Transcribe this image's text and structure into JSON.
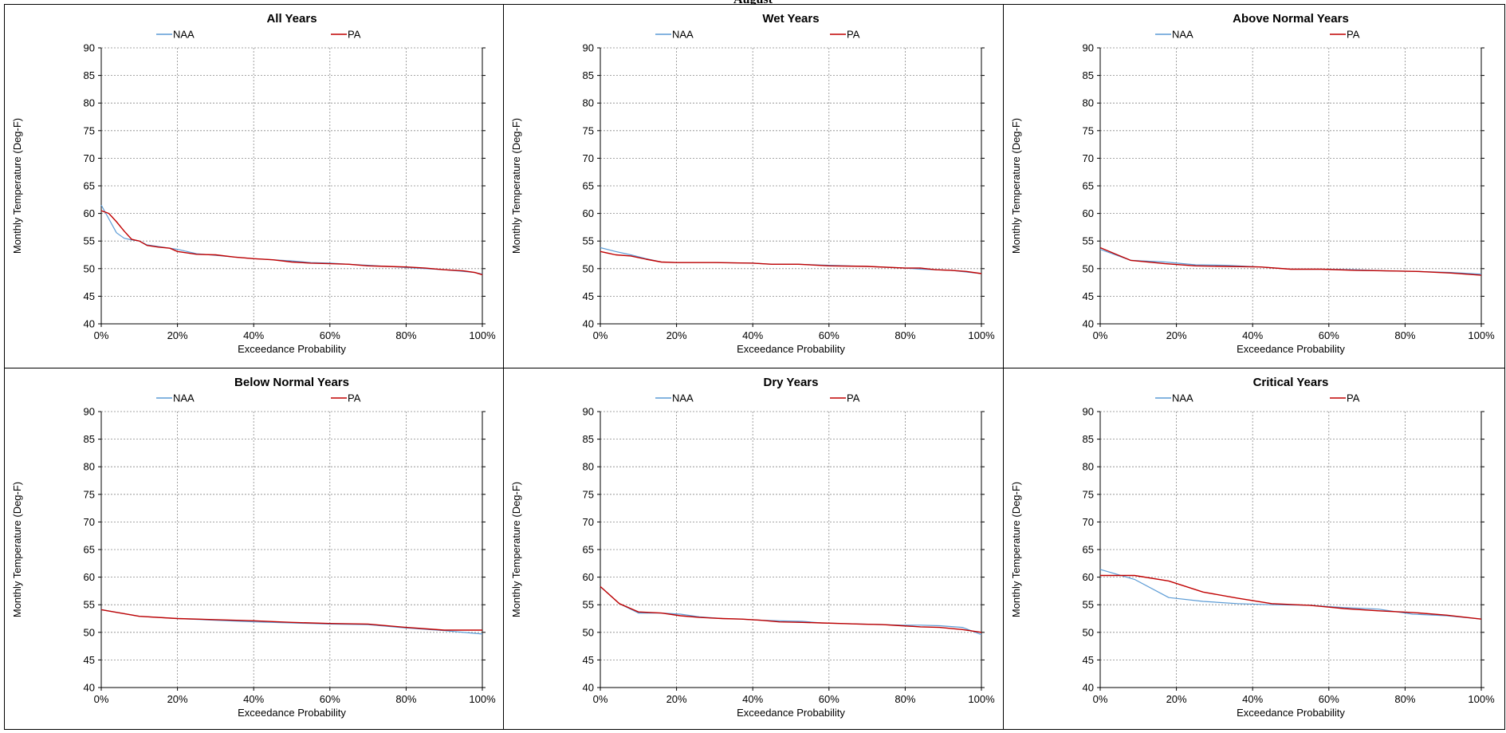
{
  "page_title": "August",
  "colors": {
    "NAA": "#5b9bd5",
    "PA": "#c00000"
  },
  "chart_data": [
    {
      "type": "line",
      "title": "All Years",
      "xlabel": "Exceedance Probability",
      "ylabel": "Monthly Temperature (Deg-F)",
      "xlim": [
        0,
        100
      ],
      "ylim": [
        40,
        90
      ],
      "xticks": [
        "0%",
        "20%",
        "40%",
        "60%",
        "80%",
        "100%"
      ],
      "yticks": [
        "40",
        "45",
        "50",
        "55",
        "60",
        "65",
        "70",
        "75",
        "80",
        "85",
        "90"
      ],
      "grid": true,
      "legend": "top",
      "series": [
        {
          "name": "NAA",
          "x": [
            0,
            2,
            4,
            6,
            8,
            10,
            12,
            15,
            18,
            20,
            25,
            30,
            35,
            40,
            45,
            50,
            55,
            60,
            65,
            70,
            75,
            80,
            85,
            90,
            95,
            98,
            100
          ],
          "y": [
            61.5,
            59.0,
            56.5,
            55.5,
            55.2,
            55.0,
            54.3,
            54.0,
            53.7,
            53.5,
            52.7,
            52.4,
            52.1,
            51.8,
            51.6,
            51.4,
            51.1,
            51.0,
            50.8,
            50.6,
            50.4,
            50.2,
            50.0,
            49.8,
            49.5,
            49.3,
            49.0
          ]
        },
        {
          "name": "PA",
          "x": [
            0,
            2,
            4,
            6,
            8,
            10,
            12,
            15,
            18,
            20,
            25,
            30,
            35,
            40,
            45,
            50,
            55,
            60,
            65,
            70,
            75,
            80,
            85,
            90,
            95,
            98,
            100
          ],
          "y": [
            60.5,
            60.0,
            58.5,
            56.8,
            55.3,
            55.0,
            54.2,
            53.9,
            53.7,
            53.1,
            52.6,
            52.5,
            52.1,
            51.8,
            51.6,
            51.2,
            51.0,
            50.9,
            50.8,
            50.5,
            50.4,
            50.3,
            50.1,
            49.8,
            49.6,
            49.3,
            48.9
          ]
        }
      ]
    },
    {
      "type": "line",
      "title": "Wet Years",
      "xlabel": "Exceedance Probability",
      "ylabel": "Monthly Temperature (Deg-F)",
      "xlim": [
        0,
        100
      ],
      "ylim": [
        40,
        90
      ],
      "xticks": [
        "0%",
        "20%",
        "40%",
        "60%",
        "80%",
        "100%"
      ],
      "yticks": [
        "40",
        "45",
        "50",
        "55",
        "60",
        "65",
        "70",
        "75",
        "80",
        "85",
        "90"
      ],
      "grid": true,
      "legend": "top",
      "series": [
        {
          "name": "NAA",
          "x": [
            0,
            4,
            8,
            12,
            16,
            20,
            30,
            40,
            45,
            52,
            60,
            70,
            80,
            84,
            88,
            92,
            96,
            100
          ],
          "y": [
            53.8,
            53.1,
            52.5,
            51.8,
            51.2,
            51.1,
            51.1,
            51.0,
            50.8,
            50.8,
            50.6,
            50.4,
            50.1,
            49.9,
            49.8,
            49.7,
            49.4,
            49.1
          ]
        },
        {
          "name": "PA",
          "x": [
            0,
            4,
            8,
            12,
            16,
            20,
            30,
            40,
            45,
            52,
            60,
            70,
            80,
            84,
            88,
            92,
            96,
            100
          ],
          "y": [
            53.1,
            52.5,
            52.3,
            51.7,
            51.2,
            51.1,
            51.1,
            51.0,
            50.8,
            50.8,
            50.5,
            50.4,
            50.1,
            50.1,
            49.8,
            49.7,
            49.5,
            49.1
          ]
        }
      ]
    },
    {
      "type": "line",
      "title": "Above Normal Years",
      "xlabel": "Exceedance Probability",
      "ylabel": "Monthly Temperature (Deg-F)",
      "xlim": [
        0,
        100
      ],
      "ylim": [
        40,
        90
      ],
      "xticks": [
        "0%",
        "20%",
        "40%",
        "60%",
        "80%",
        "100%"
      ],
      "yticks": [
        "40",
        "45",
        "50",
        "55",
        "60",
        "65",
        "70",
        "75",
        "80",
        "85",
        "90"
      ],
      "grid": true,
      "legend": "top",
      "series": [
        {
          "name": "NAA",
          "x": [
            0,
            8,
            17,
            25,
            33,
            42,
            50,
            58,
            67,
            75,
            83,
            92,
            100
          ],
          "y": [
            53.5,
            51.5,
            51.2,
            50.7,
            50.6,
            50.3,
            49.9,
            49.9,
            49.8,
            49.6,
            49.5,
            49.3,
            49.0
          ]
        },
        {
          "name": "PA",
          "x": [
            0,
            8,
            17,
            25,
            33,
            42,
            50,
            58,
            67,
            75,
            83,
            92,
            100
          ],
          "y": [
            53.8,
            51.5,
            50.9,
            50.5,
            50.4,
            50.3,
            49.9,
            49.9,
            49.7,
            49.6,
            49.5,
            49.2,
            48.8
          ]
        }
      ]
    },
    {
      "type": "line",
      "title": "Below Normal Years",
      "xlabel": "Exceedance Probability",
      "ylabel": "Monthly Temperature (Deg-F)",
      "xlim": [
        0,
        100
      ],
      "ylim": [
        40,
        90
      ],
      "xticks": [
        "0%",
        "20%",
        "40%",
        "60%",
        "80%",
        "100%"
      ],
      "yticks": [
        "40",
        "45",
        "50",
        "55",
        "60",
        "65",
        "70",
        "75",
        "80",
        "85",
        "90"
      ],
      "grid": true,
      "legend": "top",
      "series": [
        {
          "name": "NAA",
          "x": [
            0,
            10,
            20,
            30,
            40,
            50,
            60,
            70,
            80,
            90,
            100
          ],
          "y": [
            54.1,
            52.9,
            52.5,
            52.2,
            51.9,
            51.7,
            51.5,
            51.4,
            50.8,
            50.3,
            49.7
          ]
        },
        {
          "name": "PA",
          "x": [
            0,
            10,
            20,
            30,
            40,
            50,
            60,
            70,
            80,
            90,
            100
          ],
          "y": [
            54.1,
            52.9,
            52.5,
            52.3,
            52.1,
            51.8,
            51.6,
            51.5,
            50.9,
            50.4,
            50.4
          ]
        }
      ]
    },
    {
      "type": "line",
      "title": "Dry Years",
      "xlabel": "Exceedance Probability",
      "ylabel": "Monthly Temperature (Deg-F)",
      "xlim": [
        0,
        100
      ],
      "ylim": [
        40,
        90
      ],
      "xticks": [
        "0%",
        "20%",
        "40%",
        "60%",
        "80%",
        "100%"
      ],
      "yticks": [
        "40",
        "45",
        "50",
        "55",
        "60",
        "65",
        "70",
        "75",
        "80",
        "85",
        "90"
      ],
      "grid": true,
      "legend": "top",
      "series": [
        {
          "name": "NAA",
          "x": [
            0,
            5,
            10,
            16,
            21,
            26,
            32,
            37,
            42,
            47,
            53,
            58,
            63,
            68,
            74,
            79,
            84,
            89,
            95,
            100
          ],
          "y": [
            58.3,
            55.2,
            53.5,
            53.5,
            53.3,
            52.8,
            52.5,
            52.4,
            52.2,
            52.1,
            52.0,
            51.7,
            51.6,
            51.5,
            51.4,
            51.3,
            51.3,
            51.2,
            50.9,
            49.6
          ]
        },
        {
          "name": "PA",
          "x": [
            0,
            5,
            10,
            16,
            21,
            26,
            32,
            37,
            42,
            47,
            53,
            58,
            63,
            68,
            74,
            79,
            84,
            89,
            95,
            100
          ],
          "y": [
            58.3,
            55.2,
            53.7,
            53.5,
            53.0,
            52.7,
            52.5,
            52.4,
            52.2,
            51.9,
            51.8,
            51.7,
            51.6,
            51.5,
            51.4,
            51.2,
            51.0,
            50.9,
            50.5,
            50.0
          ]
        }
      ]
    },
    {
      "type": "line",
      "title": "Critical Years",
      "xlabel": "Exceedance Probability",
      "ylabel": "Monthly Temperature (Deg-F)",
      "xlim": [
        0,
        100
      ],
      "ylim": [
        40,
        90
      ],
      "xticks": [
        "0%",
        "20%",
        "40%",
        "60%",
        "80%",
        "100%"
      ],
      "yticks": [
        "40",
        "45",
        "50",
        "55",
        "60",
        "65",
        "70",
        "75",
        "80",
        "85",
        "90"
      ],
      "grid": true,
      "legend": "top",
      "series": [
        {
          "name": "NAA",
          "x": [
            0,
            9,
            18,
            27,
            36,
            45,
            55,
            64,
            73,
            82,
            91,
            100
          ],
          "y": [
            61.4,
            59.6,
            56.3,
            55.6,
            55.2,
            55.0,
            54.9,
            54.5,
            54.2,
            53.3,
            53.0,
            52.4
          ]
        },
        {
          "name": "PA",
          "x": [
            0,
            9,
            18,
            27,
            36,
            45,
            55,
            64,
            73,
            82,
            91,
            100
          ],
          "y": [
            60.3,
            60.3,
            59.3,
            57.3,
            56.2,
            55.2,
            54.9,
            54.3,
            53.9,
            53.6,
            53.1,
            52.4
          ]
        }
      ]
    }
  ]
}
